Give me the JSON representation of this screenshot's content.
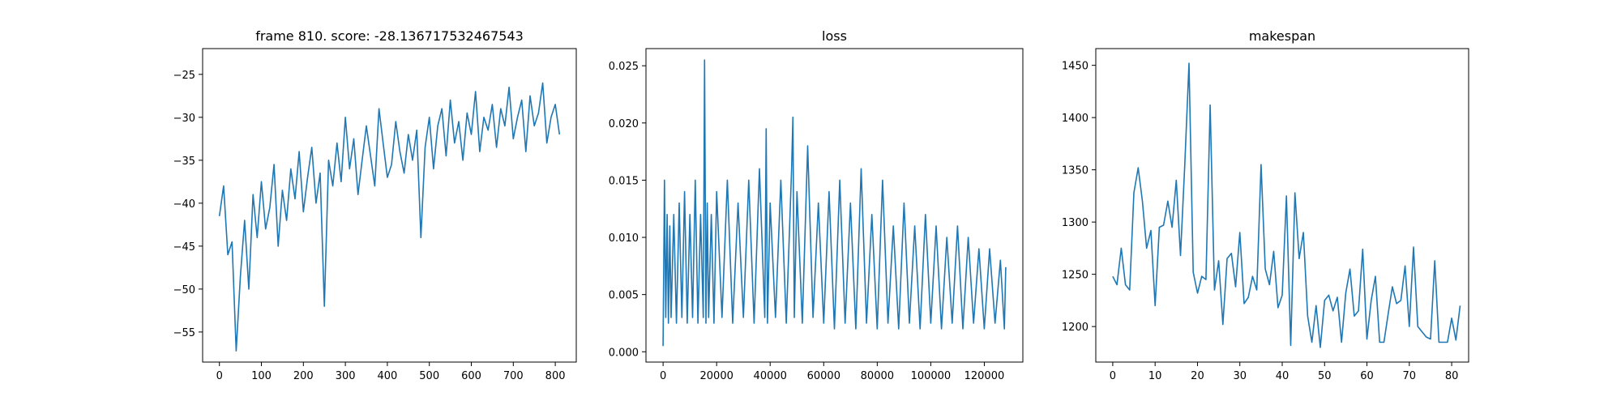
{
  "figure": {
    "line_color": "#1f77b4"
  },
  "chart_data": [
    {
      "type": "line",
      "title": "frame 810. score: -28.136717532467543",
      "xlabel": "",
      "ylabel": "",
      "xlim": [
        -40,
        850
      ],
      "ylim": [
        -58.5,
        -22.0
      ],
      "xticks": [
        0,
        100,
        200,
        300,
        400,
        500,
        600,
        700,
        800
      ],
      "xtick_labels": [
        "0",
        "100",
        "200",
        "300",
        "400",
        "500",
        "600",
        "700",
        "800"
      ],
      "yticks": [
        -55,
        -50,
        -45,
        -40,
        -35,
        -30,
        -25
      ],
      "ytick_labels": [
        "−55",
        "−50",
        "−45",
        "−40",
        "−35",
        "−30",
        "−25"
      ],
      "series": [
        {
          "x_start": 0,
          "x_step": 10,
          "values": [
            -41.5,
            -38.0,
            -46.0,
            -44.5,
            -57.2,
            -48.5,
            -42.0,
            -50.0,
            -39.0,
            -44.0,
            -37.5,
            -43.0,
            -40.5,
            -35.5,
            -45.0,
            -38.5,
            -42.0,
            -36.0,
            -39.5,
            -34.0,
            -41.0,
            -37.0,
            -33.5,
            -40.0,
            -36.5,
            -52.0,
            -35.0,
            -38.0,
            -33.0,
            -37.5,
            -30.0,
            -36.0,
            -32.5,
            -39.0,
            -35.0,
            -31.0,
            -34.5,
            -38.0,
            -29.0,
            -33.0,
            -37.0,
            -35.5,
            -30.5,
            -34.0,
            -36.5,
            -32.0,
            -35.0,
            -31.5,
            -44.0,
            -33.5,
            -30.0,
            -36.0,
            -31.0,
            -29.0,
            -34.5,
            -28.0,
            -33.0,
            -30.5,
            -35.0,
            -29.5,
            -32.0,
            -27.0,
            -34.0,
            -30.0,
            -31.5,
            -28.5,
            -33.5,
            -29.0,
            -31.0,
            -26.5,
            -32.5,
            -30.0,
            -28.0,
            -34.0,
            -27.5,
            -31.0,
            -29.5,
            -26.0,
            -33.0,
            -30.0,
            -28.5,
            -32.0
          ]
        }
      ]
    },
    {
      "type": "line",
      "title": "loss",
      "xlabel": "",
      "ylabel": "",
      "xlim": [
        -6400,
        134400
      ],
      "ylim": [
        -0.0009,
        0.0265
      ],
      "xticks": [
        0,
        20000,
        40000,
        60000,
        80000,
        100000,
        120000
      ],
      "xtick_labels": [
        "0",
        "20000",
        "40000",
        "60000",
        "80000",
        "100000",
        "120000"
      ],
      "yticks": [
        0.0,
        0.005,
        0.01,
        0.015,
        0.02,
        0.025
      ],
      "ytick_labels": [
        "0.000",
        "0.005",
        "0.010",
        "0.015",
        "0.020",
        "0.025"
      ],
      "series": [
        {
          "x": [
            0,
            500,
            1000,
            1500,
            2000,
            2500,
            3000,
            4000,
            5000,
            6000,
            7000,
            8000,
            9000,
            10000,
            11000,
            12000,
            13000,
            14000,
            15000,
            15500,
            16000,
            16500,
            17000,
            18000,
            19000,
            20000,
            22000,
            24000,
            26000,
            28000,
            30000,
            32000,
            34000,
            36000,
            38000,
            38500,
            39000,
            40000,
            42000,
            44000,
            46000,
            48000,
            48500,
            49000,
            50000,
            52000,
            54000,
            56000,
            58000,
            60000,
            62000,
            64000,
            66000,
            68000,
            70000,
            72000,
            74000,
            76000,
            78000,
            80000,
            82000,
            84000,
            86000,
            88000,
            90000,
            92000,
            94000,
            96000,
            98000,
            100000,
            102000,
            104000,
            106000,
            108000,
            110000,
            112000,
            114000,
            116000,
            118000,
            120000,
            122000,
            124000,
            126000,
            127500,
            128000
          ],
          "values": [
            0.0005,
            0.015,
            0.003,
            0.012,
            0.0025,
            0.011,
            0.003,
            0.012,
            0.0025,
            0.013,
            0.003,
            0.014,
            0.0025,
            0.012,
            0.003,
            0.015,
            0.0025,
            0.012,
            0.003,
            0.0255,
            0.0025,
            0.013,
            0.003,
            0.012,
            0.0025,
            0.014,
            0.003,
            0.015,
            0.0025,
            0.013,
            0.003,
            0.015,
            0.0025,
            0.016,
            0.003,
            0.0195,
            0.0025,
            0.013,
            0.003,
            0.015,
            0.0025,
            0.016,
            0.0205,
            0.003,
            0.014,
            0.0025,
            0.018,
            0.003,
            0.013,
            0.0025,
            0.014,
            0.002,
            0.015,
            0.0025,
            0.013,
            0.002,
            0.016,
            0.0025,
            0.012,
            0.002,
            0.015,
            0.0025,
            0.011,
            0.002,
            0.013,
            0.0025,
            0.011,
            0.002,
            0.012,
            0.0025,
            0.011,
            0.002,
            0.01,
            0.0025,
            0.011,
            0.002,
            0.01,
            0.0025,
            0.009,
            0.002,
            0.009,
            0.0025,
            0.008,
            0.002,
            0.0074
          ]
        }
      ]
    },
    {
      "type": "line",
      "title": "makespan",
      "xlabel": "",
      "ylabel": "",
      "xlim": [
        -4,
        84
      ],
      "ylim": [
        1166,
        1466
      ],
      "xticks": [
        0,
        10,
        20,
        30,
        40,
        50,
        60,
        70,
        80
      ],
      "xtick_labels": [
        "0",
        "10",
        "20",
        "30",
        "40",
        "50",
        "60",
        "70",
        "80"
      ],
      "yticks": [
        1200,
        1250,
        1300,
        1350,
        1400,
        1450
      ],
      "ytick_labels": [
        "1200",
        "1250",
        "1300",
        "1350",
        "1400",
        "1450"
      ],
      "series": [
        {
          "x_start": 0,
          "x_step": 1,
          "values": [
            1248,
            1240,
            1275,
            1240,
            1235,
            1328,
            1352,
            1320,
            1275,
            1292,
            1220,
            1295,
            1297,
            1320,
            1295,
            1340,
            1268,
            1355,
            1452,
            1252,
            1232,
            1248,
            1245,
            1412,
            1235,
            1263,
            1202,
            1265,
            1270,
            1238,
            1290,
            1222,
            1228,
            1248,
            1235,
            1355,
            1255,
            1240,
            1272,
            1218,
            1230,
            1325,
            1182,
            1328,
            1265,
            1290,
            1210,
            1185,
            1220,
            1180,
            1225,
            1230,
            1215,
            1228,
            1185,
            1232,
            1255,
            1210,
            1215,
            1274,
            1188,
            1225,
            1248,
            1185,
            1185,
            1212,
            1238,
            1222,
            1225,
            1258,
            1200,
            1276,
            1200,
            1195,
            1190,
            1188,
            1263,
            1185,
            1185,
            1185,
            1208,
            1187,
            1220
          ]
        }
      ]
    }
  ]
}
